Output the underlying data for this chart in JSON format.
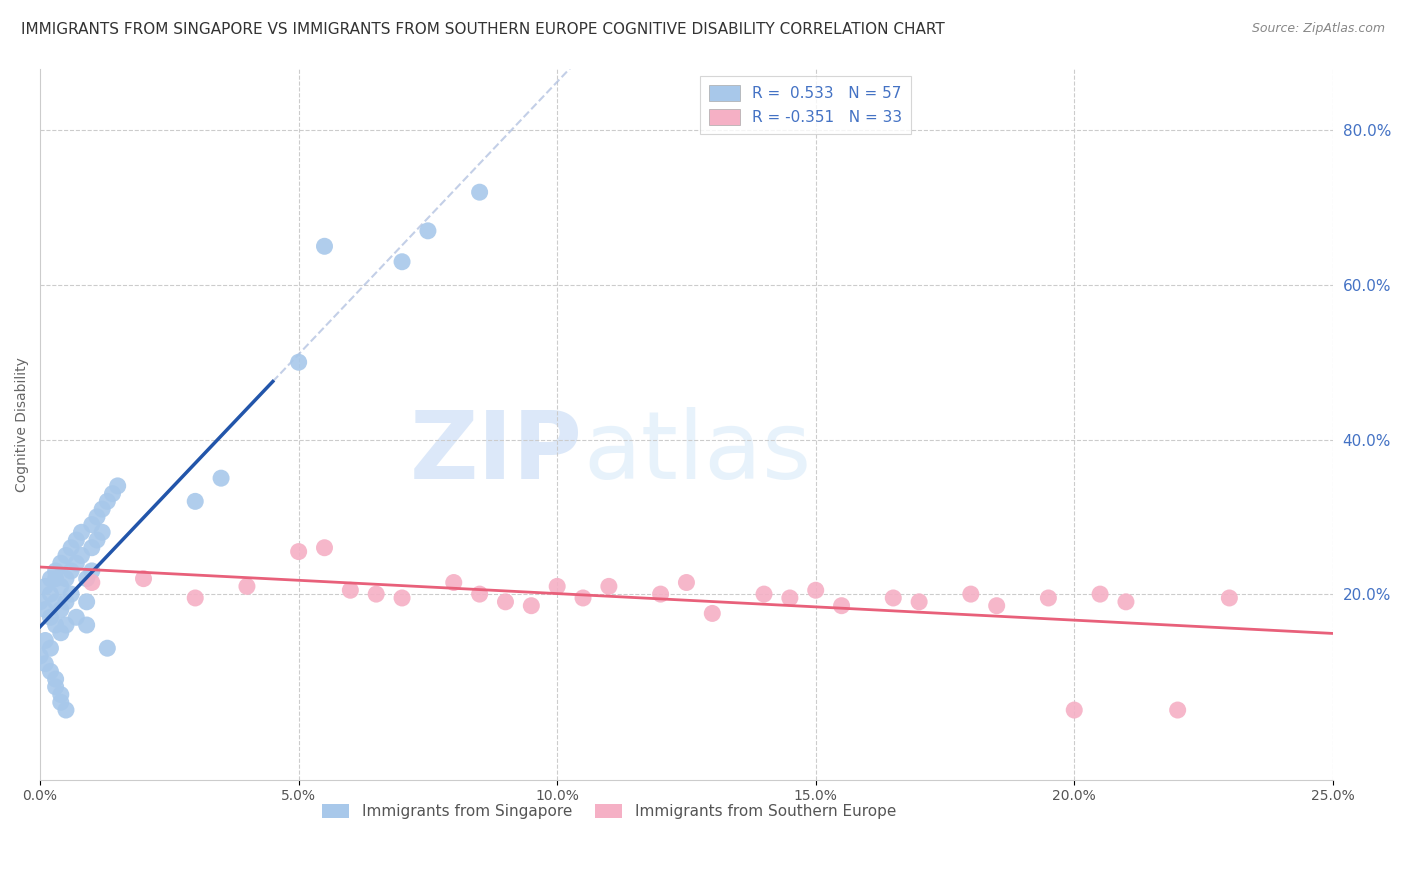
{
  "title": "IMMIGRANTS FROM SINGAPORE VS IMMIGRANTS FROM SOUTHERN EUROPE COGNITIVE DISABILITY CORRELATION CHART",
  "source": "Source: ZipAtlas.com",
  "ylabel": "Cognitive Disability",
  "right_ytick_labels": [
    "80.0%",
    "60.0%",
    "40.0%",
    "20.0%"
  ],
  "right_ytick_values": [
    0.8,
    0.6,
    0.4,
    0.2
  ],
  "xlim": [
    0.0,
    0.25
  ],
  "ylim": [
    -0.04,
    0.88
  ],
  "singapore_R": 0.533,
  "singapore_N": 57,
  "southern_europe_R": -0.351,
  "southern_europe_N": 33,
  "singapore_color": "#a8c8ea",
  "singapore_line_color": "#2255aa",
  "southern_europe_color": "#f5b0c5",
  "southern_europe_line_color": "#e8607a",
  "legend_label_1": "Immigrants from Singapore",
  "legend_label_2": "Immigrants from Southern Europe",
  "background_color": "#ffffff",
  "grid_color": "#cccccc",
  "watermark_zip": "ZIP",
  "watermark_atlas": "atlas",
  "title_fontsize": 11,
  "source_fontsize": 9,
  "axis_label_fontsize": 10,
  "tick_fontsize": 10,
  "legend_fontsize": 11,
  "xtick_labels": [
    "0.0%",
    "5.0%",
    "10.0%",
    "15.0%",
    "20.0%",
    "25.0%"
  ],
  "xtick_values": [
    0.0,
    0.05,
    0.1,
    0.15,
    0.2,
    0.25
  ],
  "sg_x": [
    0.0,
    0.001,
    0.001,
    0.002,
    0.002,
    0.002,
    0.003,
    0.003,
    0.003,
    0.003,
    0.004,
    0.004,
    0.004,
    0.004,
    0.005,
    0.005,
    0.005,
    0.005,
    0.006,
    0.006,
    0.006,
    0.007,
    0.007,
    0.007,
    0.008,
    0.008,
    0.009,
    0.009,
    0.009,
    0.01,
    0.01,
    0.01,
    0.011,
    0.011,
    0.012,
    0.012,
    0.013,
    0.013,
    0.014,
    0.015,
    0.0,
    0.001,
    0.001,
    0.002,
    0.002,
    0.003,
    0.003,
    0.004,
    0.004,
    0.005,
    0.03,
    0.035,
    0.05,
    0.055,
    0.07,
    0.075,
    0.085
  ],
  "sg_y": [
    0.19,
    0.21,
    0.18,
    0.22,
    0.2,
    0.17,
    0.23,
    0.19,
    0.16,
    0.22,
    0.24,
    0.21,
    0.18,
    0.15,
    0.25,
    0.22,
    0.19,
    0.16,
    0.26,
    0.23,
    0.2,
    0.17,
    0.27,
    0.24,
    0.28,
    0.25,
    0.22,
    0.19,
    0.16,
    0.29,
    0.26,
    0.23,
    0.3,
    0.27,
    0.31,
    0.28,
    0.32,
    0.13,
    0.33,
    0.34,
    0.12,
    0.14,
    0.11,
    0.13,
    0.1,
    0.09,
    0.08,
    0.07,
    0.06,
    0.05,
    0.32,
    0.35,
    0.5,
    0.65,
    0.63,
    0.67,
    0.72
  ],
  "se_x": [
    0.01,
    0.02,
    0.03,
    0.04,
    0.05,
    0.055,
    0.06,
    0.065,
    0.07,
    0.08,
    0.085,
    0.09,
    0.095,
    0.1,
    0.105,
    0.11,
    0.12,
    0.125,
    0.13,
    0.14,
    0.145,
    0.15,
    0.155,
    0.165,
    0.17,
    0.18,
    0.185,
    0.195,
    0.2,
    0.205,
    0.21,
    0.22,
    0.23
  ],
  "se_y": [
    0.215,
    0.22,
    0.195,
    0.21,
    0.255,
    0.26,
    0.205,
    0.2,
    0.195,
    0.215,
    0.2,
    0.19,
    0.185,
    0.21,
    0.195,
    0.21,
    0.2,
    0.215,
    0.175,
    0.2,
    0.195,
    0.205,
    0.185,
    0.195,
    0.19,
    0.2,
    0.185,
    0.195,
    0.05,
    0.2,
    0.19,
    0.05,
    0.195
  ]
}
